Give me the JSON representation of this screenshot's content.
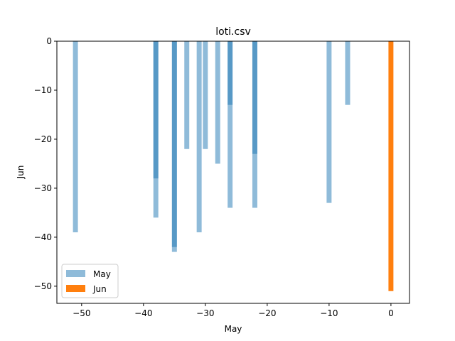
{
  "chart_data": {
    "type": "bar",
    "title": "loti.csv",
    "xlabel": "May",
    "ylabel": "Jun",
    "xlim": [
      -54,
      3
    ],
    "ylim": [
      -53.5,
      0
    ],
    "xticks": [
      -50,
      -40,
      -30,
      -20,
      -10,
      0
    ],
    "yticks": [
      0,
      -10,
      -20,
      -30,
      -40,
      -50
    ],
    "bar_width": 0.8,
    "grid": false,
    "legend_position": "lower-left",
    "series": [
      {
        "name": "May",
        "color": "#1f77b4",
        "alpha": 0.5,
        "x": [
          -51,
          -38,
          -38,
          -35,
          -35,
          -33,
          -31,
          -30,
          -28,
          -26,
          -26,
          -22,
          -22,
          -10,
          -7
        ],
        "values": [
          -39,
          -36,
          -28,
          -43,
          -42,
          -22,
          -39,
          -22,
          -25,
          -34,
          -13,
          -34,
          -23,
          -33,
          -13
        ]
      },
      {
        "name": "Jun",
        "color": "#ff7f0e",
        "alpha": 1,
        "x": [
          0
        ],
        "values": [
          -51
        ]
      }
    ]
  }
}
